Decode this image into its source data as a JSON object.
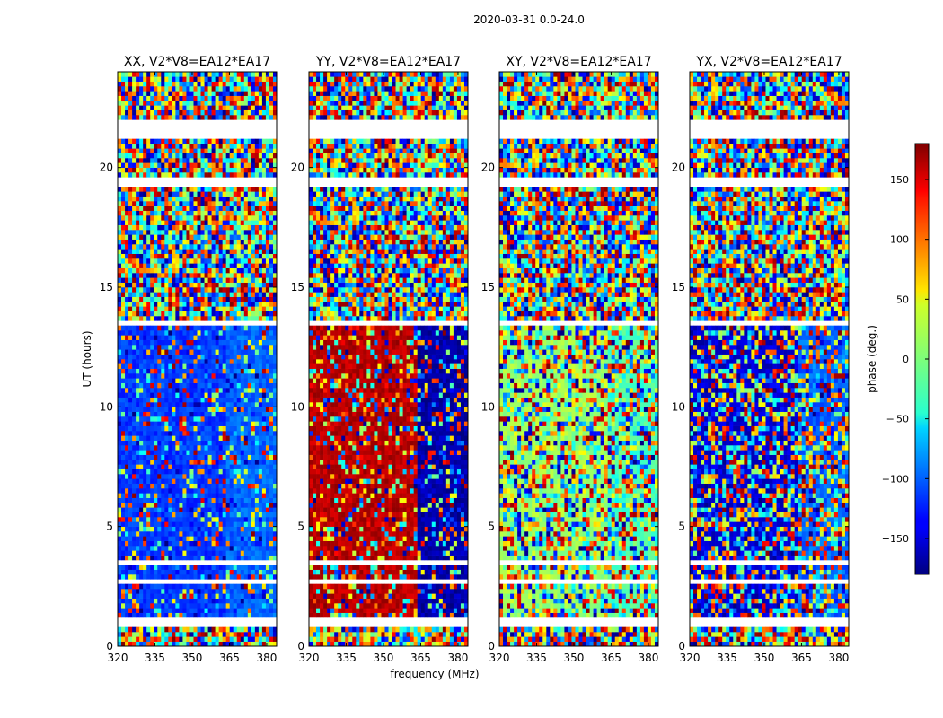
{
  "figure": {
    "suptitle": "2020-03-31 0.0-24.0"
  },
  "chart_data": {
    "type": "heatmap",
    "title": "2020-03-31 0.0-24.0",
    "xlabel": "frequency (MHz)",
    "ylabel": "UT (hours)",
    "xlim": [
      320,
      384
    ],
    "ylim": [
      0,
      24
    ],
    "xticks": [
      320,
      335,
      350,
      365,
      380
    ],
    "yticks": [
      0,
      5,
      10,
      15,
      20
    ],
    "colormap": "jet",
    "colorbar": {
      "label": "phase (deg.)",
      "range": [
        -180,
        180
      ],
      "ticks": [
        150,
        100,
        50,
        0,
        -50,
        -100,
        -150
      ],
      "tick_labels": [
        "150",
        "100",
        "50",
        "0",
        "− 50",
        "−100",
        "−150"
      ]
    },
    "flagged_ut_ranges": [
      [
        0.8,
        1.2
      ],
      [
        19.3,
        19.6
      ],
      [
        21.2,
        22.0
      ],
      [
        13.5,
        13.6
      ],
      [
        3.5,
        3.6
      ],
      [
        2.7,
        2.8
      ]
    ],
    "panels": [
      {
        "title": "XX, V2*V8=EA12*EA17",
        "pol": "XX",
        "low_band_phase": -115,
        "high_band_phase": -100,
        "noise": 0.25
      },
      {
        "title": "YY, V2*V8=EA12*EA17",
        "pol": "YY",
        "low_band_phase": 160,
        "high_band_phase": -165,
        "noise": 0.3
      },
      {
        "title": "XY, V2*V8=EA12*EA17",
        "pol": "XY",
        "low_band_phase": 10,
        "high_band_phase": -20,
        "noise": 0.6
      },
      {
        "title": "YX, V2*V8=EA12*EA17",
        "pol": "YX",
        "low_band_phase": -150,
        "high_band_phase": -100,
        "noise": 0.6
      }
    ]
  }
}
